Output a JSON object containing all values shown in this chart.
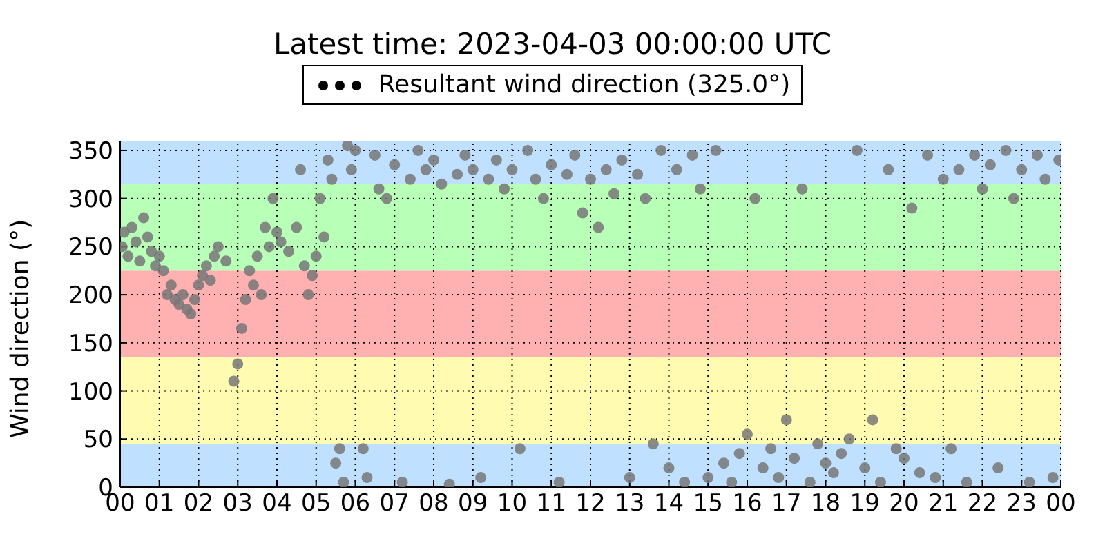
{
  "chart_data": {
    "type": "scatter",
    "title": "Latest time: 2023-04-03 00:00:00 UTC",
    "ylabel": "Wind direction (°)",
    "x": [
      0.05,
      0.1,
      0.2,
      0.3,
      0.4,
      0.5,
      0.6,
      0.7,
      0.8,
      0.9,
      1.0,
      1.1,
      1.2,
      1.3,
      1.4,
      1.5,
      1.6,
      1.7,
      1.8,
      1.9,
      2.0,
      2.1,
      2.2,
      2.3,
      2.4,
      2.5,
      2.7,
      2.9,
      3.0,
      3.1,
      3.2,
      3.3,
      3.4,
      3.5,
      3.6,
      3.7,
      3.8,
      3.9,
      4.0,
      4.1,
      4.3,
      4.5,
      4.6,
      4.7,
      4.8,
      4.9,
      5.0,
      5.1,
      5.2,
      5.3,
      5.4,
      5.5,
      5.6,
      5.7,
      5.8,
      5.9,
      6.0,
      6.2,
      6.3,
      6.5,
      6.6,
      6.8,
      7.0,
      7.2,
      7.4,
      7.6,
      7.8,
      8.0,
      8.2,
      8.4,
      8.6,
      8.8,
      9.0,
      9.2,
      9.4,
      9.6,
      9.8,
      10.0,
      10.2,
      10.4,
      10.6,
      10.8,
      11.0,
      11.2,
      11.4,
      11.6,
      11.8,
      12.0,
      12.2,
      12.4,
      12.6,
      12.8,
      13.0,
      13.2,
      13.4,
      13.6,
      13.8,
      14.0,
      14.2,
      14.4,
      14.6,
      14.8,
      15.0,
      15.2,
      15.4,
      15.6,
      15.8,
      16.0,
      16.2,
      16.4,
      16.6,
      16.8,
      17.0,
      17.2,
      17.4,
      17.6,
      17.8,
      18.0,
      18.2,
      18.4,
      18.6,
      18.8,
      19.0,
      19.2,
      19.4,
      19.6,
      19.8,
      20.0,
      20.2,
      20.4,
      20.6,
      20.8,
      21.0,
      21.2,
      21.4,
      21.6,
      21.8,
      22.0,
      22.2,
      22.4,
      22.6,
      22.8,
      23.0,
      23.2,
      23.4,
      23.6,
      23.8,
      23.95
    ],
    "series": [
      {
        "name": "Resultant wind direction (325.0°)",
        "color": "#777777",
        "values": [
          250,
          265,
          240,
          270,
          255,
          235,
          280,
          260,
          245,
          230,
          240,
          225,
          200,
          210,
          195,
          190,
          200,
          185,
          180,
          195,
          210,
          220,
          230,
          215,
          240,
          250,
          235,
          110,
          128,
          165,
          195,
          225,
          210,
          240,
          200,
          270,
          250,
          300,
          265,
          255,
          245,
          270,
          330,
          230,
          200,
          220,
          240,
          300,
          260,
          340,
          320,
          25,
          40,
          5,
          355,
          330,
          350,
          40,
          10,
          345,
          310,
          300,
          335,
          5,
          320,
          350,
          330,
          340,
          315,
          3,
          325,
          345,
          330,
          10,
          320,
          340,
          310,
          330,
          40,
          350,
          320,
          300,
          335,
          5,
          325,
          345,
          285,
          320,
          270,
          330,
          305,
          340,
          10,
          325,
          300,
          45,
          350,
          20,
          330,
          5,
          345,
          310,
          10,
          350,
          25,
          5,
          35,
          55,
          300,
          20,
          40,
          10,
          70,
          30,
          310,
          5,
          45,
          25,
          15,
          35,
          50,
          350,
          20,
          70,
          5,
          330,
          40,
          30,
          290,
          15,
          345,
          10,
          320,
          40,
          330,
          5,
          345,
          310,
          335,
          20,
          350,
          300,
          330,
          5,
          345,
          320,
          10,
          340
        ]
      }
    ],
    "xlim": [
      0,
      24
    ],
    "xticks": [
      {
        "value": 0,
        "label": "00"
      },
      {
        "value": 1,
        "label": "01"
      },
      {
        "value": 2,
        "label": "02"
      },
      {
        "value": 3,
        "label": "03"
      },
      {
        "value": 4,
        "label": "04"
      },
      {
        "value": 5,
        "label": "05"
      },
      {
        "value": 6,
        "label": "06"
      },
      {
        "value": 7,
        "label": "07"
      },
      {
        "value": 8,
        "label": "08"
      },
      {
        "value": 9,
        "label": "09"
      },
      {
        "value": 10,
        "label": "10"
      },
      {
        "value": 11,
        "label": "11"
      },
      {
        "value": 12,
        "label": "12"
      },
      {
        "value": 13,
        "label": "13"
      },
      {
        "value": 14,
        "label": "14"
      },
      {
        "value": 15,
        "label": "15"
      },
      {
        "value": 16,
        "label": "16"
      },
      {
        "value": 17,
        "label": "17"
      },
      {
        "value": 18,
        "label": "18"
      },
      {
        "value": 19,
        "label": "19"
      },
      {
        "value": 20,
        "label": "20"
      },
      {
        "value": 21,
        "label": "21"
      },
      {
        "value": 22,
        "label": "22"
      },
      {
        "value": 23,
        "label": "23"
      },
      {
        "value": 24,
        "label": "00"
      }
    ],
    "ylim": [
      0,
      360
    ],
    "yticks": [
      0,
      50,
      100,
      150,
      200,
      250,
      300,
      350
    ],
    "bands": [
      {
        "axis": "y",
        "from": 0,
        "to": 45,
        "color": "#bfe0ff"
      },
      {
        "axis": "y",
        "from": 45,
        "to": 135,
        "color": "#fffbb0"
      },
      {
        "axis": "y",
        "from": 135,
        "to": 225,
        "color": "#ffb0b0"
      },
      {
        "axis": "y",
        "from": 225,
        "to": 315,
        "color": "#b8ffb8"
      },
      {
        "axis": "y",
        "from": 315,
        "to": 360,
        "color": "#bfe0ff"
      }
    ],
    "grid": true,
    "legend": "top",
    "marker": "circle"
  }
}
